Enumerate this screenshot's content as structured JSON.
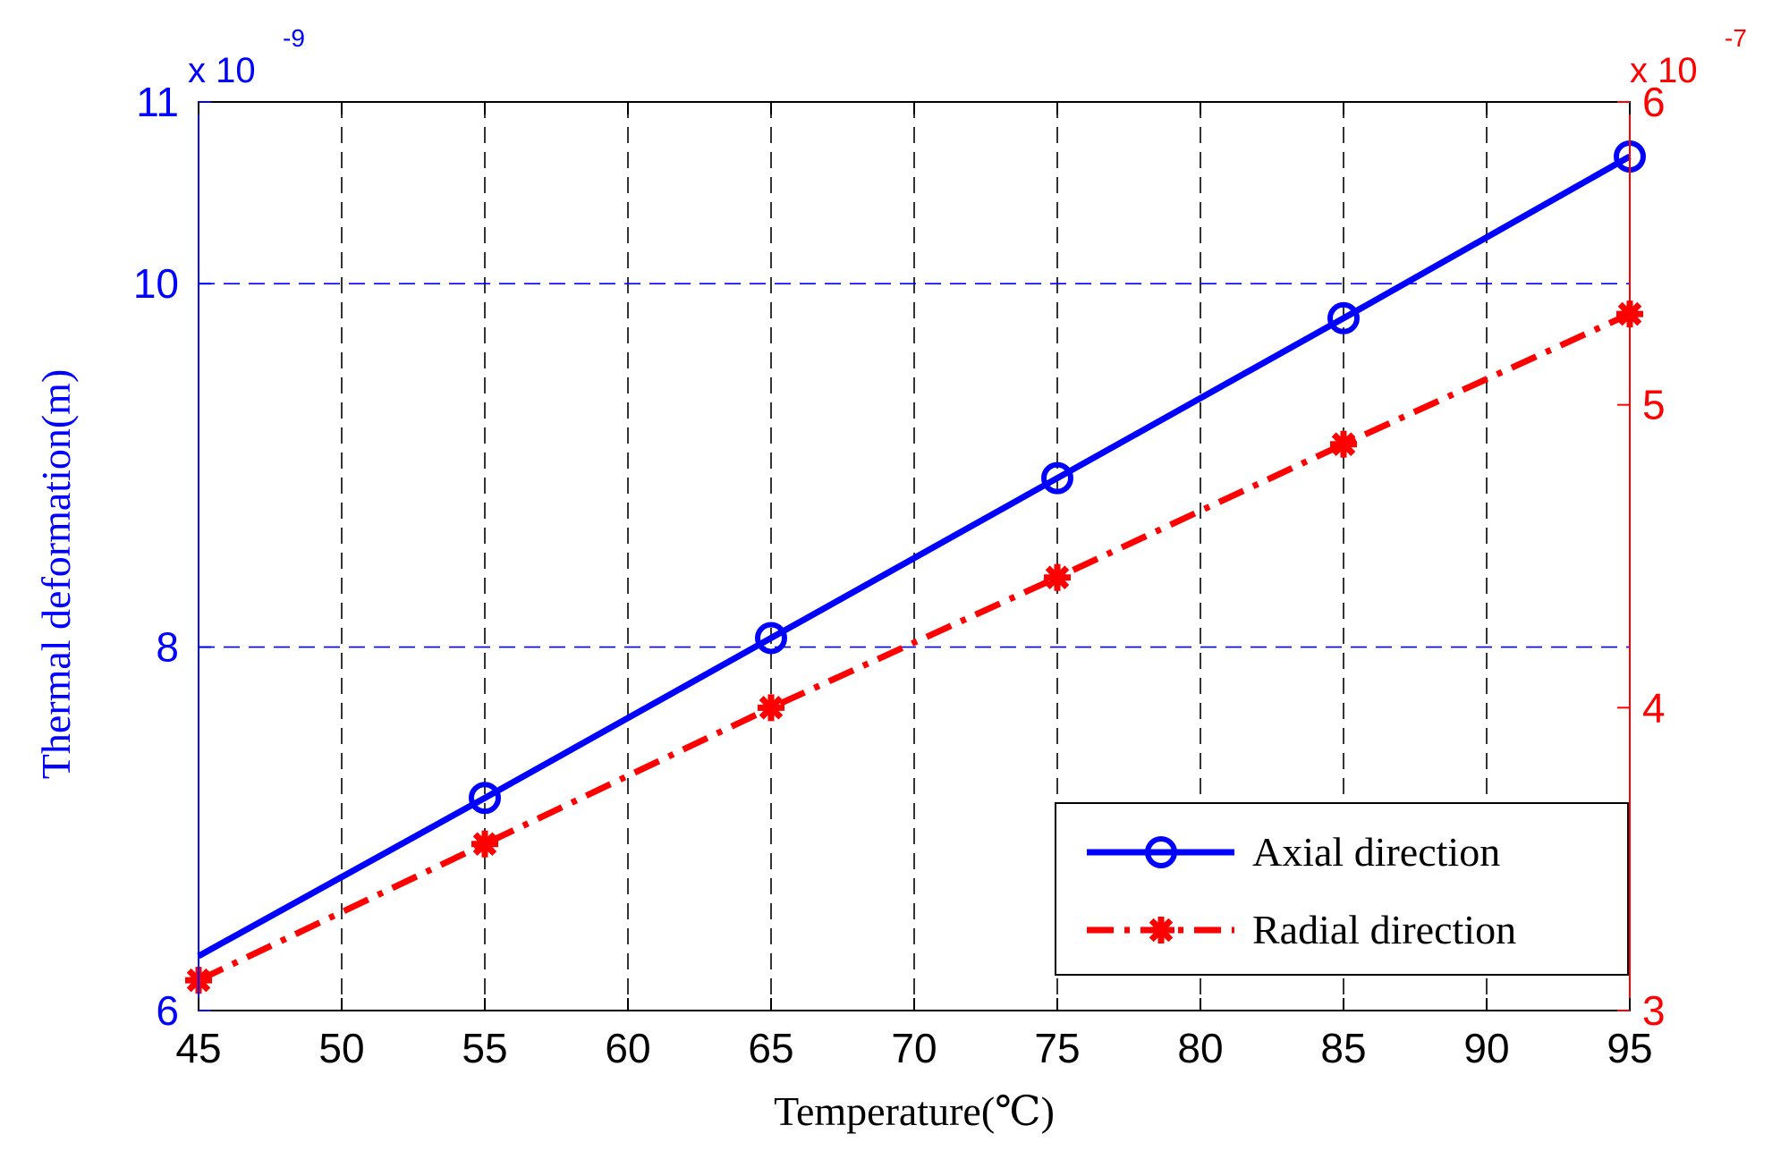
{
  "chart_data": {
    "type": "line",
    "title": "",
    "xlabel": "Temperature(℃)",
    "ylabel_left": "Thermal deformation(m)",
    "left_axis_multiplier": {
      "base": "x 10",
      "exponent": "-9"
    },
    "right_axis_multiplier": {
      "base": "x 10",
      "exponent": "-7"
    },
    "xlim": [
      45,
      95
    ],
    "xticks": [
      45,
      50,
      55,
      60,
      65,
      70,
      75,
      80,
      85,
      90,
      95
    ],
    "ylim_left": [
      6,
      11
    ],
    "yticks_left": [
      6,
      8,
      10,
      11
    ],
    "ylim_right": [
      3,
      6
    ],
    "yticks_right": [
      3,
      4,
      5,
      6
    ],
    "colors": {
      "left_axis": "#0000ff",
      "right_axis": "#ff0000",
      "grid": "#000000"
    },
    "series": [
      {
        "name": "Axial direction",
        "axis": "left",
        "color": "#0000ff",
        "line_style": "solid",
        "marker": "circle",
        "x": [
          45,
          55,
          65,
          75,
          85,
          95
        ],
        "values": [
          6.3,
          7.17,
          8.05,
          8.93,
          9.81,
          10.7
        ],
        "markers_on": [
          55,
          65,
          75,
          85,
          95
        ]
      },
      {
        "name": "Radial direction",
        "axis": "right",
        "color": "#ff0000",
        "line_style": "dash-dot",
        "marker": "asterisk",
        "x": [
          45,
          55,
          65,
          75,
          85,
          95
        ],
        "values": [
          3.1,
          3.55,
          4.0,
          4.43,
          4.87,
          5.3
        ],
        "markers_on": [
          45,
          55,
          65,
          75,
          85,
          95
        ]
      }
    ],
    "legend_position": "bottom-right"
  }
}
